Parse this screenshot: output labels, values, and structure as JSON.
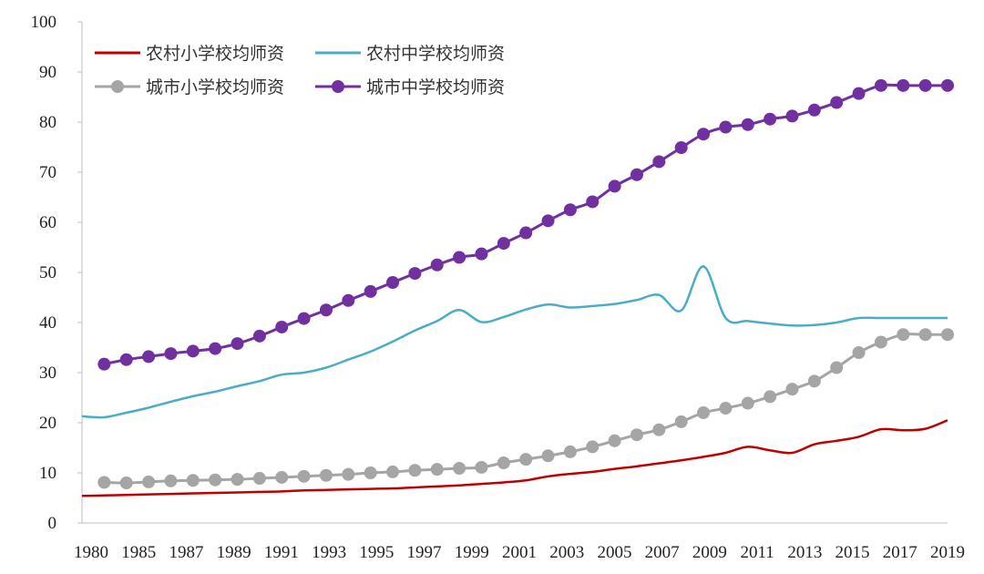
{
  "chart_data": {
    "type": "line",
    "title": "",
    "xlabel": "",
    "ylabel": "",
    "ylim": [
      0,
      100
    ],
    "xlim": [
      1980,
      2019
    ],
    "yticks": [
      "0",
      "10",
      "20",
      "30",
      "40",
      "50",
      "60",
      "70",
      "80",
      "90",
      "100"
    ],
    "xticks": [
      "1980",
      "1985",
      "1987",
      "1989",
      "1991",
      "1993",
      "1995",
      "1997",
      "1999",
      "2001",
      "2003",
      "2005",
      "2007",
      "2009",
      "2011",
      "2013",
      "2015",
      "2017",
      "2019"
    ],
    "x": [
      1980,
      1981,
      1982,
      1983,
      1984,
      1985,
      1986,
      1987,
      1988,
      1989,
      1990,
      1991,
      1992,
      1993,
      1994,
      1995,
      1996,
      1997,
      1998,
      1999,
      2000,
      2001,
      2002,
      2003,
      2004,
      2005,
      2006,
      2007,
      2008,
      2009,
      2010,
      2011,
      2012,
      2013,
      2014,
      2015,
      2016,
      2017,
      2018,
      2019
    ],
    "series": [
      {
        "name": "农村小学校均师资",
        "color": "#C00000",
        "marker": "none",
        "x": [
          1980,
          1981,
          1982,
          1983,
          1984,
          1985,
          1986,
          1987,
          1988,
          1989,
          1990,
          1991,
          1992,
          1993,
          1994,
          1995,
          1996,
          1997,
          1998,
          1999,
          2000,
          2001,
          2002,
          2003,
          2004,
          2005,
          2006,
          2007,
          2008,
          2009,
          2010,
          2011,
          2012,
          2013,
          2014,
          2015,
          2016,
          2017,
          2018,
          2019
        ],
        "values": [
          5.4,
          5.5,
          5.6,
          5.7,
          5.8,
          5.9,
          6.0,
          6.1,
          6.2,
          6.3,
          6.5,
          6.6,
          6.7,
          6.8,
          6.9,
          7.1,
          7.3,
          7.5,
          7.8,
          8.1,
          8.5,
          9.3,
          9.8,
          10.2,
          10.8,
          11.3,
          11.9,
          12.5,
          13.2,
          14.0,
          15.2,
          14.5,
          14.0,
          15.7,
          16.4,
          17.2,
          18.7,
          18.5,
          18.8,
          20.5
        ]
      },
      {
        "name": "农村中学校均师资",
        "color": "#4BACC6",
        "marker": "none",
        "x": [
          1980,
          1981,
          1982,
          1983,
          1984,
          1985,
          1986,
          1987,
          1988,
          1989,
          1990,
          1991,
          1992,
          1993,
          1994,
          1995,
          1996,
          1997,
          1998,
          1999,
          2000,
          2001,
          2002,
          2003,
          2004,
          2005,
          2006,
          2007,
          2008,
          2009,
          2010,
          2011,
          2012,
          2013,
          2014,
          2015,
          2016,
          2017,
          2018,
          2019
        ],
        "values": [
          21.3,
          21.1,
          22.0,
          23.0,
          24.2,
          25.3,
          26.2,
          27.3,
          28.3,
          29.6,
          30.0,
          31.0,
          32.6,
          34.2,
          36.2,
          38.4,
          40.3,
          42.5,
          40.1,
          41.1,
          42.6,
          43.6,
          43.0,
          43.3,
          43.7,
          44.5,
          45.5,
          42.4,
          51.2,
          40.9,
          40.3,
          39.8,
          39.4,
          39.5,
          40.0,
          40.9,
          40.9,
          40.9,
          40.9,
          40.9
        ]
      },
      {
        "name": "城市小学校均师资",
        "color": "#A5A5A5",
        "marker": "circle",
        "x": [
          1981,
          1982,
          1983,
          1984,
          1985,
          1986,
          1987,
          1988,
          1989,
          1990,
          1991,
          1992,
          1993,
          1994,
          1995,
          1996,
          1997,
          1998,
          1999,
          2000,
          2001,
          2002,
          2003,
          2004,
          2005,
          2006,
          2007,
          2008,
          2009,
          2010,
          2011,
          2012,
          2013,
          2014,
          2015,
          2016,
          2017,
          2018,
          2019
        ],
        "values": [
          8.1,
          8.0,
          8.2,
          8.4,
          8.5,
          8.6,
          8.7,
          8.9,
          9.1,
          9.3,
          9.5,
          9.7,
          10.0,
          10.2,
          10.5,
          10.7,
          10.9,
          11.1,
          12.0,
          12.7,
          13.4,
          14.2,
          15.2,
          16.4,
          17.6,
          18.6,
          20.2,
          22.0,
          22.9,
          23.9,
          25.2,
          26.7,
          28.3,
          31.0,
          34.0,
          36.1,
          37.6,
          37.6,
          37.6
        ]
      },
      {
        "name": "城市中学校均师资",
        "color": "#7030A0",
        "marker": "circle",
        "x": [
          1981,
          1982,
          1983,
          1984,
          1985,
          1986,
          1987,
          1988,
          1989,
          1990,
          1991,
          1992,
          1993,
          1994,
          1995,
          1996,
          1997,
          1998,
          1999,
          2000,
          2001,
          2002,
          2003,
          2004,
          2005,
          2006,
          2007,
          2008,
          2009,
          2010,
          2011,
          2012,
          2013,
          2014,
          2015,
          2016,
          2017,
          2018,
          2019
        ],
        "values": [
          31.7,
          32.6,
          33.2,
          33.8,
          34.3,
          34.8,
          35.8,
          37.3,
          39.1,
          40.8,
          42.5,
          44.4,
          46.2,
          48.0,
          49.8,
          51.5,
          53.0,
          53.7,
          55.8,
          57.9,
          60.3,
          62.5,
          64.1,
          67.2,
          69.5,
          72.1,
          74.9,
          77.6,
          79.0,
          79.5,
          80.6,
          81.2,
          82.4,
          83.9,
          85.7,
          87.3,
          87.3,
          87.3,
          87.3
        ]
      }
    ],
    "grid": false,
    "legend_position": "top-left"
  }
}
